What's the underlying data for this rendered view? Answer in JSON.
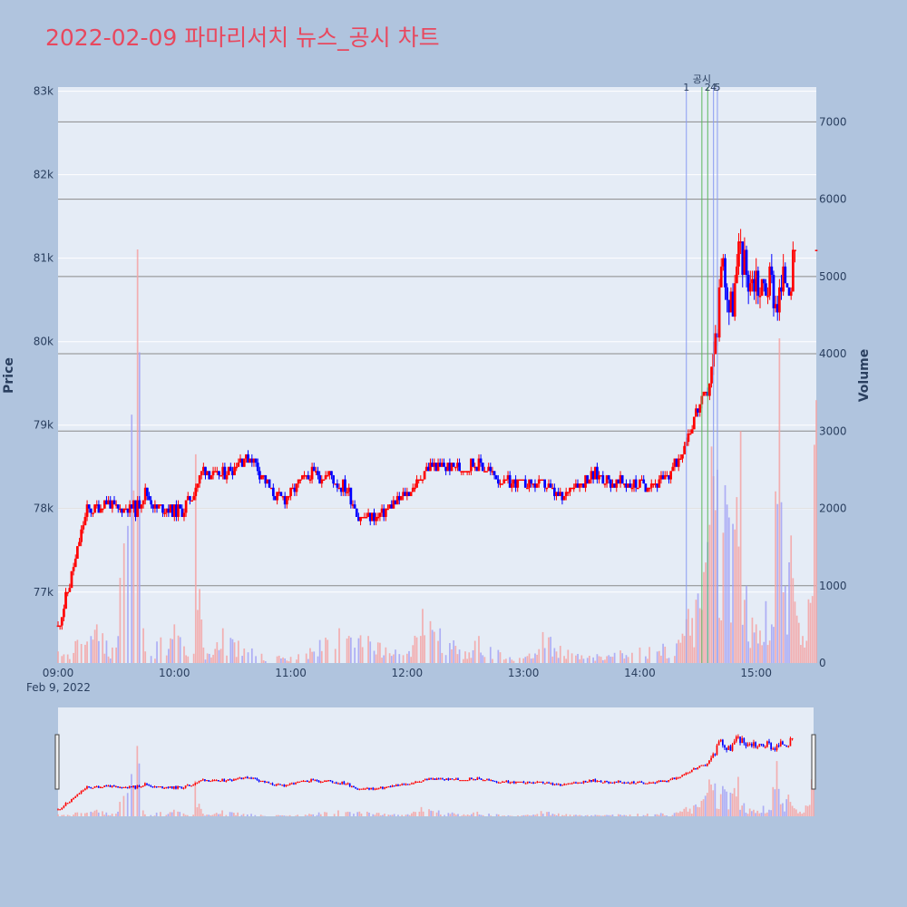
{
  "title": "2022-02-09 파마리서치 뉴스_공시 차트",
  "colors": {
    "background": "#b0c4de",
    "plot_background": "#e5ecf6",
    "title": "#e8485e",
    "up": "#ff0000",
    "down": "#0000ff",
    "volume_up": "#f4a3a3",
    "volume_down": "#a3a3f4",
    "annotation_line_blue": "#8a9cf2",
    "annotation_line_green": "#5cb85c"
  },
  "chart_data": {
    "type": "candlestick",
    "title": "2022-02-09 파마리서치 뉴스_공시 차트",
    "ylabel": "Price",
    "y2label": "Volume",
    "x_ticks": [
      "09:00",
      "10:00",
      "11:00",
      "12:00",
      "13:00",
      "14:00",
      "15:00"
    ],
    "x_date_label": "Feb 9, 2022",
    "x_range": [
      "09:00",
      "15:31"
    ],
    "y_ticks": [
      "77k",
      "78k",
      "79k",
      "80k",
      "81k",
      "82k",
      "83k"
    ],
    "y_tick_values": [
      77000,
      78000,
      79000,
      80000,
      81000,
      82000,
      83000
    ],
    "y_range": [
      76150,
      83050
    ],
    "y2_ticks": [
      "0",
      "1000",
      "2000",
      "3000",
      "4000",
      "5000",
      "6000",
      "7000"
    ],
    "y2_tick_values": [
      0,
      1000,
      2000,
      3000,
      4000,
      5000,
      6000,
      7000
    ],
    "y2_range": [
      0,
      7450
    ],
    "volume_gridlines": [
      1000,
      2000,
      3000,
      4000,
      5000,
      6000,
      7000
    ],
    "price_keypoints": [
      [
        "09:00",
        76600
      ],
      [
        "09:05",
        77000
      ],
      [
        "09:10",
        77500
      ],
      [
        "09:15",
        78000
      ],
      [
        "09:20",
        78000
      ],
      [
        "09:25",
        78100
      ],
      [
        "09:30",
        78000
      ],
      [
        "09:35",
        78000
      ],
      [
        "09:40",
        78000
      ],
      [
        "09:45",
        78200
      ],
      [
        "09:50",
        78000
      ],
      [
        "09:55",
        78000
      ],
      [
        "10:00",
        77950
      ],
      [
        "10:05",
        78000
      ],
      [
        "10:10",
        78200
      ],
      [
        "10:15",
        78500
      ],
      [
        "10:20",
        78400
      ],
      [
        "10:25",
        78400
      ],
      [
        "10:30",
        78500
      ],
      [
        "10:35",
        78600
      ],
      [
        "10:40",
        78600
      ],
      [
        "10:45",
        78400
      ],
      [
        "10:50",
        78200
      ],
      [
        "10:55",
        78100
      ],
      [
        "11:00",
        78200
      ],
      [
        "11:05",
        78300
      ],
      [
        "11:10",
        78400
      ],
      [
        "11:15",
        78400
      ],
      [
        "11:20",
        78400
      ],
      [
        "11:25",
        78300
      ],
      [
        "11:30",
        78200
      ],
      [
        "11:35",
        77900
      ],
      [
        "11:40",
        77900
      ],
      [
        "11:45",
        77900
      ],
      [
        "11:50",
        78000
      ],
      [
        "11:55",
        78100
      ],
      [
        "12:00",
        78200
      ],
      [
        "12:05",
        78300
      ],
      [
        "12:10",
        78500
      ],
      [
        "12:15",
        78500
      ],
      [
        "12:20",
        78500
      ],
      [
        "12:25",
        78500
      ],
      [
        "12:30",
        78500
      ],
      [
        "12:35",
        78550
      ],
      [
        "12:40",
        78500
      ],
      [
        "12:45",
        78400
      ],
      [
        "12:50",
        78300
      ],
      [
        "12:55",
        78300
      ],
      [
        "13:00",
        78300
      ],
      [
        "13:05",
        78300
      ],
      [
        "13:10",
        78300
      ],
      [
        "13:15",
        78200
      ],
      [
        "13:20",
        78100
      ],
      [
        "13:25",
        78300
      ],
      [
        "13:30",
        78300
      ],
      [
        "13:35",
        78400
      ],
      [
        "13:40",
        78400
      ],
      [
        "13:45",
        78300
      ],
      [
        "13:50",
        78300
      ],
      [
        "13:55",
        78300
      ],
      [
        "14:00",
        78300
      ],
      [
        "14:05",
        78300
      ],
      [
        "14:10",
        78300
      ],
      [
        "14:15",
        78400
      ],
      [
        "14:20",
        78600
      ],
      [
        "14:25",
        78900
      ],
      [
        "14:30",
        79200
      ],
      [
        "14:35",
        79400
      ],
      [
        "14:38",
        79800
      ],
      [
        "14:40",
        80200
      ],
      [
        "14:42",
        81000
      ],
      [
        "14:44",
        80800
      ],
      [
        "14:46",
        80400
      ],
      [
        "14:48",
        80500
      ],
      [
        "14:50",
        80800
      ],
      [
        "14:52",
        81200
      ],
      [
        "14:54",
        80900
      ],
      [
        "14:56",
        80800
      ],
      [
        "14:58",
        80700
      ],
      [
        "15:00",
        80800
      ],
      [
        "15:02",
        80600
      ],
      [
        "15:05",
        80700
      ],
      [
        "15:08",
        80700
      ],
      [
        "15:10",
        80500
      ],
      [
        "15:13",
        80600
      ],
      [
        "15:15",
        80800
      ],
      [
        "15:18",
        80800
      ],
      [
        "15:20",
        80900
      ],
      [
        "15:22",
        80700
      ],
      [
        "15:31",
        81100
      ]
    ],
    "volume_keypoints": [
      [
        "09:00",
        150
      ],
      [
        "09:10",
        300
      ],
      [
        "09:20",
        500
      ],
      [
        "09:30",
        200
      ],
      [
        "09:41",
        5350
      ],
      [
        "09:45",
        150
      ],
      [
        "10:00",
        500
      ],
      [
        "10:10",
        120
      ],
      [
        "10:11",
        2700
      ],
      [
        "10:15",
        200
      ],
      [
        "10:25",
        450
      ],
      [
        "10:45",
        120
      ],
      [
        "11:00",
        80
      ],
      [
        "11:25",
        450
      ],
      [
        "11:40",
        350
      ],
      [
        "12:00",
        120
      ],
      [
        "12:08",
        700
      ],
      [
        "12:30",
        150
      ],
      [
        "12:37",
        350
      ],
      [
        "13:00",
        60
      ],
      [
        "13:10",
        400
      ],
      [
        "13:30",
        100
      ],
      [
        "14:00",
        200
      ],
      [
        "14:20",
        300
      ],
      [
        "14:25",
        700
      ],
      [
        "14:30",
        900
      ],
      [
        "14:34",
        1300
      ],
      [
        "14:37",
        2800
      ],
      [
        "14:40",
        2500
      ],
      [
        "14:44",
        2300
      ],
      [
        "14:48",
        1800
      ],
      [
        "14:52",
        3000
      ],
      [
        "14:55",
        1000
      ],
      [
        "15:00",
        500
      ],
      [
        "15:05",
        800
      ],
      [
        "15:08",
        500
      ],
      [
        "15:12",
        4200
      ],
      [
        "15:15",
        1000
      ],
      [
        "15:18",
        1650
      ],
      [
        "15:25",
        200
      ],
      [
        "15:31",
        3400
      ]
    ],
    "annotations": [
      {
        "label": "1",
        "time": "14:24",
        "color": "blue"
      },
      {
        "label": "공시",
        "time": "14:32",
        "color": "green"
      },
      {
        "label": "2",
        "time": "14:35",
        "color": "green"
      },
      {
        "label": "4",
        "time": "14:38",
        "color": "blue"
      },
      {
        "label": "5",
        "time": "14:40",
        "color": "blue"
      }
    ]
  }
}
